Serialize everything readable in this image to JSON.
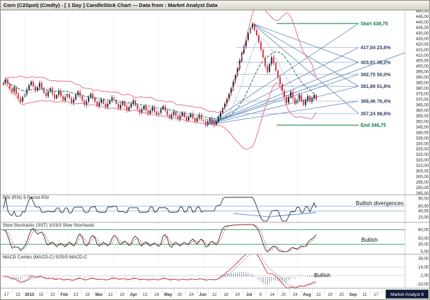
{
  "window": {
    "title": "Corn (C2Spot) (Cmdty) - [ 1 Day ] CandleStick Chart --- Data from : Market Analyst Data"
  },
  "branding": {
    "badge_label": "Market Analyst 8"
  },
  "chart_data": {
    "type": "candlestick",
    "symbol": "Corn (C2Spot) (Cmdty)",
    "timeframe": "1 Day",
    "title": "Corn (C2Spot) daily candlestick chart with Bollinger Bands, Fibonacci retracement and fan lines",
    "price_axis": {
      "min": 285,
      "max": 450,
      "step": 5,
      "decimal_separator": ","
    },
    "x_axis_labels": [
      "17",
      "23",
      "2015",
      "15",
      "22",
      "Feb",
      "13",
      "19",
      "Mar",
      "12",
      "19",
      "Apr",
      "13",
      "24",
      "May",
      "20",
      "24",
      "Jun",
      "12",
      "18",
      "24",
      "Jul",
      "6",
      "14",
      "20",
      "24",
      "Aug",
      "13",
      "19",
      "25",
      "Sep",
      "11",
      "17",
      "23",
      "Oct"
    ],
    "closes": [
      385,
      388,
      384,
      380,
      377,
      381,
      375,
      371,
      368,
      372,
      375,
      379,
      383,
      386,
      382,
      378,
      381,
      385,
      380,
      376,
      373,
      377,
      380,
      375,
      371,
      374,
      378,
      373,
      369,
      372,
      375,
      371,
      367,
      370,
      374,
      377,
      373,
      369,
      365,
      368,
      372,
      375,
      371,
      368,
      364,
      367,
      370,
      366,
      363,
      366,
      369,
      372,
      369,
      366,
      362,
      365,
      368,
      364,
      360,
      363,
      366,
      369,
      365,
      361,
      358,
      361,
      364,
      360,
      357,
      360,
      363,
      359,
      356,
      358,
      361,
      364,
      360,
      356,
      353,
      356,
      359,
      355,
      352,
      355,
      358,
      354,
      351,
      354,
      357,
      353,
      350,
      353,
      356,
      352,
      350,
      347,
      350,
      353,
      349,
      347,
      350,
      354,
      358,
      362,
      366,
      370,
      375,
      380,
      386,
      392,
      398,
      405,
      412,
      418,
      424,
      430,
      435,
      438,
      433,
      428,
      422,
      415,
      408,
      400,
      395,
      402,
      408,
      403,
      396,
      390,
      384,
      378,
      372,
      367,
      372,
      377,
      371,
      366,
      370,
      374,
      369,
      365,
      369,
      373,
      368,
      371,
      374,
      370
    ],
    "overlays": {
      "bollinger_period": 20,
      "ma_periods": [
        20,
        10
      ]
    },
    "fibonacci": {
      "start": {
        "label": "Start 438,75",
        "value": 438.75
      },
      "end": {
        "label": "End 346,75",
        "value": 346.75
      },
      "levels": [
        {
          "label": "417,04 23,6%",
          "value": 417.04
        },
        {
          "label": "403,61 38,2%",
          "value": 403.61
        },
        {
          "label": "392,75 50,0%",
          "value": 392.75
        },
        {
          "label": "381,89 61,8%",
          "value": 381.89
        },
        {
          "label": "368,46 76,4%",
          "value": 368.46
        },
        {
          "label": "357,24 88,6%",
          "value": 357.24
        }
      ]
    },
    "fan_levels_from_low": [
      438.75,
      417.04,
      403.61,
      392.75,
      381.89,
      368.46
    ],
    "fan_levels_from_high": [
      403.61,
      381.89,
      357.24
    ],
    "panels": [
      {
        "id": "rsi",
        "title": "RSI (RSI) 5 Period RSI",
        "ticks": [
          90,
          60,
          40,
          15
        ],
        "levels": [
          60,
          40
        ],
        "annotation": "Bullish divergences"
      },
      {
        "id": "stoch",
        "title": "Slow Stochastic (SST) 10/3/3 Slow Stochastic",
        "ticks": [
          80,
          50,
          30,
          5
        ],
        "levels": [
          80,
          30
        ],
        "annotation": "Bullish"
      },
      {
        "id": "macd",
        "title": "MACD Combo (MACD-C) 5/25/5 MACD-C",
        "ticks": [
          26,
          14,
          2,
          -10
        ],
        "levels": [
          14,
          2
        ],
        "annotation": "Bullish"
      }
    ],
    "colors": {
      "candle_up": "#141414",
      "candle_down": "#cf2233",
      "bollinger": "#e8718d",
      "ma20": "#1f7a4d",
      "ma10": "#3a5fc8",
      "fib_line": "#9fb6d9",
      "fib_label": "#2c3e66",
      "fan": "#6f8fc4",
      "start_end": "#0a7a3c",
      "rsi_line": "#10141c",
      "rsi_level": "#89a6d8",
      "stoch_k": "#10141c",
      "stoch_d": "#d03040",
      "stoch_level": "#2f9e5f",
      "macd_line": "#d03040",
      "macd_signal": "#27314e",
      "macd_level": "#cfcfcf",
      "axis_text": "#222222"
    }
  }
}
